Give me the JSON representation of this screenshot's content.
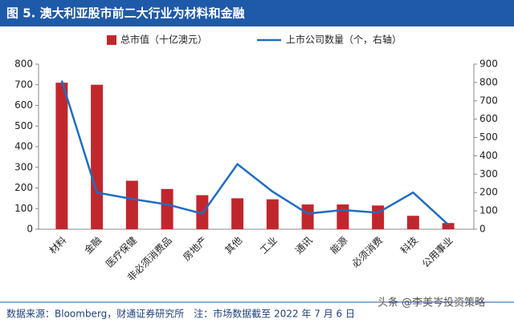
{
  "chart_data": {
    "type": "bar_line",
    "title": "图 5. 澳大利亚股市前二大行业为材料和金融",
    "categories": [
      "材料",
      "金融",
      "医疗保健",
      "非必须消费品",
      "房地产",
      "其他",
      "工业",
      "通讯",
      "能源",
      "必须消费",
      "科技",
      "公用事业"
    ],
    "series": [
      {
        "name": "总市值（十亿澳元）",
        "color": "#c0272d",
        "kind": "bar",
        "values": [
          710,
          700,
          235,
          195,
          165,
          150,
          145,
          120,
          120,
          115,
          65,
          30
        ]
      },
      {
        "name": "上市公司数量（个，右轴）",
        "color": "#1f6dbf",
        "kind": "line",
        "axis": "y2",
        "values": [
          810,
          200,
          165,
          135,
          85,
          355,
          205,
          85,
          105,
          90,
          200,
          25
        ]
      }
    ],
    "ylim": [
      0,
      800
    ],
    "yticks": [
      0,
      100,
      200,
      300,
      400,
      500,
      600,
      700,
      800
    ],
    "y2lim": [
      0,
      900
    ],
    "y2ticks": [
      0,
      100,
      200,
      300,
      400,
      500,
      600,
      700,
      800,
      900
    ],
    "grid": false
  },
  "source": "数据来源：Bloomberg，财通证券研究所　注：市场数据截至 2022 年 7 月 6 日",
  "watermark": "头条 @李美岑投资策略"
}
